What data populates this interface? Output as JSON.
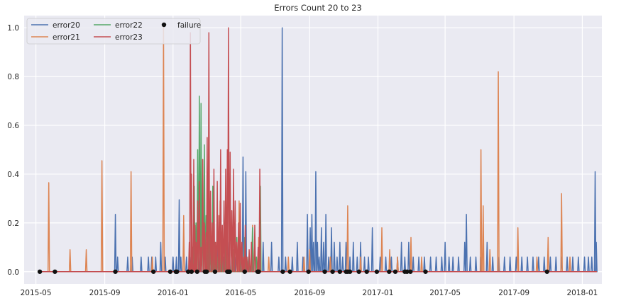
{
  "chart_data": {
    "type": "line",
    "title": "Errors Count 20 to 23",
    "xlabel": "",
    "ylabel": "",
    "x_range": [
      "2015-04-10",
      "2018-02-05"
    ],
    "ylim": [
      -0.05,
      1.05
    ],
    "x_ticks": [
      "2015-05",
      "2015-09",
      "2016-01",
      "2016-05",
      "2016-09",
      "2017-01",
      "2017-05",
      "2017-09",
      "2018-01"
    ],
    "y_ticks": [
      0.0,
      0.2,
      0.4,
      0.6,
      0.8,
      1.0
    ],
    "y_tick_labels": [
      "0.0",
      "0.2",
      "0.4",
      "0.6",
      "0.8",
      "1.0"
    ],
    "grid": true,
    "legend_position": "top-left",
    "colors": {
      "error20": "#4c72b0",
      "error21": "#dd8452",
      "error22": "#55a868",
      "error23": "#c44e52",
      "failure": "#111111",
      "plot_background": "#eaeaf2"
    },
    "legend": [
      {
        "key": "error20",
        "label": "error20",
        "kind": "line"
      },
      {
        "key": "error21",
        "label": "error21",
        "kind": "line"
      },
      {
        "key": "error22",
        "label": "error22",
        "kind": "line"
      },
      {
        "key": "error23",
        "label": "error23",
        "kind": "line"
      },
      {
        "key": "failure",
        "label": "failure",
        "kind": "marker"
      }
    ],
    "series": [
      {
        "name": "error20",
        "spikes": [
          [
            "2015-09-20",
            0.235
          ],
          [
            "2015-09-24",
            0.06
          ],
          [
            "2015-10-12",
            0.06
          ],
          [
            "2015-10-20",
            0.06
          ],
          [
            "2015-11-05",
            0.06
          ],
          [
            "2015-11-18",
            0.06
          ],
          [
            "2015-11-24",
            0.06
          ],
          [
            "2015-12-01",
            0.06
          ],
          [
            "2015-12-10",
            0.12
          ],
          [
            "2015-12-18",
            0.06
          ],
          [
            "2016-01-01",
            0.06
          ],
          [
            "2016-01-07",
            0.06
          ],
          [
            "2016-01-12",
            0.295
          ],
          [
            "2016-01-15",
            0.06
          ],
          [
            "2016-01-25",
            0.06
          ],
          [
            "2016-02-02",
            0.06
          ],
          [
            "2016-02-12",
            0.12
          ],
          [
            "2016-02-18",
            0.06
          ],
          [
            "2016-03-01",
            0.12
          ],
          [
            "2016-03-10",
            0.06
          ],
          [
            "2016-03-20",
            0.12
          ],
          [
            "2016-04-01",
            0.06
          ],
          [
            "2016-04-10",
            0.12
          ],
          [
            "2016-04-20",
            0.06
          ],
          [
            "2016-04-28",
            0.06
          ],
          [
            "2016-05-05",
            0.47
          ],
          [
            "2016-05-10",
            0.41
          ],
          [
            "2016-05-15",
            0.06
          ],
          [
            "2016-05-22",
            0.06
          ],
          [
            "2016-06-01",
            0.06
          ],
          [
            "2016-06-10",
            0.12
          ],
          [
            "2016-06-25",
            0.12
          ],
          [
            "2016-07-08",
            0.06
          ],
          [
            "2016-07-14",
            1.0
          ],
          [
            "2016-07-20",
            0.06
          ],
          [
            "2016-08-01",
            0.06
          ],
          [
            "2016-08-10",
            0.12
          ],
          [
            "2016-08-20",
            0.06
          ],
          [
            "2016-08-28",
            0.235
          ],
          [
            "2016-09-02",
            0.18
          ],
          [
            "2016-09-05",
            0.235
          ],
          [
            "2016-09-08",
            0.12
          ],
          [
            "2016-09-12",
            0.41
          ],
          [
            "2016-09-15",
            0.12
          ],
          [
            "2016-09-18",
            0.06
          ],
          [
            "2016-09-22",
            0.18
          ],
          [
            "2016-09-26",
            0.12
          ],
          [
            "2016-09-30",
            0.235
          ],
          [
            "2016-10-05",
            0.06
          ],
          [
            "2016-10-10",
            0.18
          ],
          [
            "2016-10-15",
            0.12
          ],
          [
            "2016-10-20",
            0.06
          ],
          [
            "2016-10-25",
            0.12
          ],
          [
            "2016-10-30",
            0.06
          ],
          [
            "2016-11-05",
            0.12
          ],
          [
            "2016-11-12",
            0.06
          ],
          [
            "2016-11-18",
            0.12
          ],
          [
            "2016-11-25",
            0.06
          ],
          [
            "2016-12-01",
            0.12
          ],
          [
            "2016-12-08",
            0.06
          ],
          [
            "2016-12-15",
            0.06
          ],
          [
            "2016-12-22",
            0.18
          ],
          [
            "2017-01-05",
            0.06
          ],
          [
            "2017-01-15",
            0.06
          ],
          [
            "2017-01-25",
            0.06
          ],
          [
            "2017-02-05",
            0.06
          ],
          [
            "2017-02-12",
            0.12
          ],
          [
            "2017-02-18",
            0.06
          ],
          [
            "2017-02-25",
            0.12
          ],
          [
            "2017-03-05",
            0.06
          ],
          [
            "2017-03-15",
            0.06
          ],
          [
            "2017-03-25",
            0.06
          ],
          [
            "2017-04-05",
            0.06
          ],
          [
            "2017-04-15",
            0.06
          ],
          [
            "2017-04-25",
            0.06
          ],
          [
            "2017-05-01",
            0.12
          ],
          [
            "2017-05-08",
            0.06
          ],
          [
            "2017-05-15",
            0.06
          ],
          [
            "2017-05-25",
            0.06
          ],
          [
            "2017-06-05",
            0.12
          ],
          [
            "2017-06-08",
            0.235
          ],
          [
            "2017-06-15",
            0.06
          ],
          [
            "2017-06-25",
            0.06
          ],
          [
            "2017-07-05",
            0.06
          ],
          [
            "2017-07-15",
            0.12
          ],
          [
            "2017-07-25",
            0.06
          ],
          [
            "2017-08-05",
            0.06
          ],
          [
            "2017-08-15",
            0.06
          ],
          [
            "2017-08-25",
            0.06
          ],
          [
            "2017-09-05",
            0.06
          ],
          [
            "2017-09-15",
            0.06
          ],
          [
            "2017-09-25",
            0.06
          ],
          [
            "2017-10-05",
            0.06
          ],
          [
            "2017-10-15",
            0.06
          ],
          [
            "2017-10-25",
            0.06
          ],
          [
            "2017-11-05",
            0.06
          ],
          [
            "2017-11-15",
            0.06
          ],
          [
            "2017-11-25",
            0.06
          ],
          [
            "2017-12-05",
            0.06
          ],
          [
            "2017-12-15",
            0.06
          ],
          [
            "2017-12-25",
            0.06
          ],
          [
            "2018-01-05",
            0.06
          ],
          [
            "2018-01-12",
            0.06
          ],
          [
            "2018-01-18",
            0.06
          ],
          [
            "2018-01-24",
            0.41
          ],
          [
            "2018-01-26",
            0.12
          ]
        ]
      },
      {
        "name": "error21",
        "spikes": [
          [
            "2015-05-24",
            0.365
          ],
          [
            "2015-07-01",
            0.09
          ],
          [
            "2015-07-30",
            0.09
          ],
          [
            "2015-08-27",
            0.455
          ],
          [
            "2015-10-18",
            0.41
          ],
          [
            "2015-11-25",
            0.06
          ],
          [
            "2015-12-15",
            1.0
          ],
          [
            "2016-01-20",
            0.23
          ],
          [
            "2016-02-05",
            0.06
          ],
          [
            "2016-02-12",
            0.16
          ],
          [
            "2016-02-20",
            0.29
          ],
          [
            "2016-03-03",
            0.16
          ],
          [
            "2016-03-15",
            0.12
          ],
          [
            "2016-03-25",
            0.29
          ],
          [
            "2016-04-05",
            0.25
          ],
          [
            "2016-04-18",
            0.09
          ],
          [
            "2016-04-28",
            0.29
          ],
          [
            "2016-05-08",
            0.12
          ],
          [
            "2016-05-22",
            0.19
          ],
          [
            "2016-06-02",
            0.14
          ],
          [
            "2016-06-20",
            0.06
          ],
          [
            "2016-07-25",
            0.06
          ],
          [
            "2016-08-22",
            0.06
          ],
          [
            "2016-09-01",
            0.09
          ],
          [
            "2016-10-08",
            0.06
          ],
          [
            "2016-11-08",
            0.27
          ],
          [
            "2016-12-01",
            0.06
          ],
          [
            "2017-01-08",
            0.18
          ],
          [
            "2017-01-22",
            0.09
          ],
          [
            "2017-02-05",
            0.06
          ],
          [
            "2017-03-01",
            0.14
          ],
          [
            "2017-03-20",
            0.06
          ],
          [
            "2017-07-04",
            0.5
          ],
          [
            "2017-07-08",
            0.27
          ],
          [
            "2017-07-20",
            0.09
          ],
          [
            "2017-08-04",
            0.82
          ],
          [
            "2017-09-08",
            0.18
          ],
          [
            "2017-10-12",
            0.06
          ],
          [
            "2017-11-01",
            0.14
          ],
          [
            "2017-11-25",
            0.32
          ],
          [
            "2017-12-10",
            0.06
          ]
        ]
      },
      {
        "name": "error22",
        "spikes": [
          [
            "2016-02-04",
            0.06
          ],
          [
            "2016-02-08",
            0.35
          ],
          [
            "2016-02-11",
            0.2
          ],
          [
            "2016-02-14",
            0.5
          ],
          [
            "2016-02-17",
            0.72
          ],
          [
            "2016-02-20",
            0.69
          ],
          [
            "2016-02-23",
            0.29
          ],
          [
            "2016-02-26",
            0.52
          ],
          [
            "2016-02-29",
            0.23
          ],
          [
            "2016-03-04",
            0.4
          ],
          [
            "2016-03-08",
            0.12
          ],
          [
            "2016-03-12",
            0.35
          ],
          [
            "2016-03-16",
            0.12
          ],
          [
            "2016-03-20",
            0.06
          ],
          [
            "2016-03-24",
            0.18
          ],
          [
            "2016-03-28",
            0.1
          ],
          [
            "2016-04-03",
            0.12
          ],
          [
            "2016-04-10",
            0.06
          ],
          [
            "2016-04-17",
            0.09
          ],
          [
            "2016-04-24",
            0.14
          ],
          [
            "2016-05-01",
            0.06
          ],
          [
            "2016-05-08",
            0.14
          ],
          [
            "2016-05-15",
            0.06
          ],
          [
            "2016-05-22",
            0.18
          ],
          [
            "2016-05-29",
            0.06
          ],
          [
            "2016-06-05",
            0.35
          ]
        ]
      },
      {
        "name": "error23",
        "spikes": [
          [
            "2016-01-30",
            0.12
          ],
          [
            "2016-02-01",
            0.98
          ],
          [
            "2016-02-03",
            0.4
          ],
          [
            "2016-02-05",
            0.1
          ],
          [
            "2016-02-07",
            0.46
          ],
          [
            "2016-02-09",
            0.19
          ],
          [
            "2016-02-11",
            0.12
          ],
          [
            "2016-02-14",
            0.29
          ],
          [
            "2016-02-17",
            0.37
          ],
          [
            "2016-02-20",
            0.1
          ],
          [
            "2016-02-23",
            0.46
          ],
          [
            "2016-02-26",
            0.2
          ],
          [
            "2016-02-29",
            0.16
          ],
          [
            "2016-03-02",
            0.55
          ],
          [
            "2016-03-05",
            0.98
          ],
          [
            "2016-03-08",
            0.33
          ],
          [
            "2016-03-11",
            0.2
          ],
          [
            "2016-03-14",
            0.42
          ],
          [
            "2016-03-17",
            0.12
          ],
          [
            "2016-03-20",
            0.37
          ],
          [
            "2016-03-23",
            0.23
          ],
          [
            "2016-03-26",
            0.5
          ],
          [
            "2016-03-29",
            0.19
          ],
          [
            "2016-04-01",
            0.29
          ],
          [
            "2016-04-04",
            0.42
          ],
          [
            "2016-04-07",
            0.5
          ],
          [
            "2016-04-09",
            1.0
          ],
          [
            "2016-04-12",
            0.49
          ],
          [
            "2016-04-15",
            0.25
          ],
          [
            "2016-04-18",
            0.42
          ],
          [
            "2016-04-21",
            0.29
          ],
          [
            "2016-04-24",
            0.12
          ],
          [
            "2016-04-27",
            0.2
          ],
          [
            "2016-04-30",
            0.28
          ],
          [
            "2016-05-03",
            0.12
          ],
          [
            "2016-05-06",
            0.06
          ],
          [
            "2016-05-09",
            0.19
          ],
          [
            "2016-05-12",
            0.06
          ],
          [
            "2016-05-16",
            0.09
          ],
          [
            "2016-05-20",
            0.12
          ],
          [
            "2016-05-26",
            0.19
          ],
          [
            "2016-06-01",
            0.1
          ],
          [
            "2016-06-04",
            0.42
          ]
        ]
      }
    ],
    "failure": [
      "2015-05-08",
      "2015-06-04",
      "2015-09-20",
      "2015-11-27",
      "2015-12-27",
      "2016-01-06",
      "2016-01-08",
      "2016-01-28",
      "2016-02-03",
      "2016-02-13",
      "2016-02-27",
      "2016-03-01",
      "2016-03-16",
      "2016-04-07",
      "2016-04-09",
      "2016-04-11",
      "2016-05-08",
      "2016-05-31",
      "2016-06-02",
      "2016-07-15",
      "2016-07-28",
      "2016-08-30",
      "2016-09-28",
      "2016-10-12",
      "2016-10-25",
      "2016-11-05",
      "2016-11-08",
      "2016-11-12",
      "2016-11-28",
      "2016-12-12",
      "2016-12-30",
      "2017-01-21",
      "2017-02-01",
      "2017-02-18",
      "2017-02-22",
      "2017-02-28",
      "2017-03-27",
      "2017-10-30"
    ]
  }
}
